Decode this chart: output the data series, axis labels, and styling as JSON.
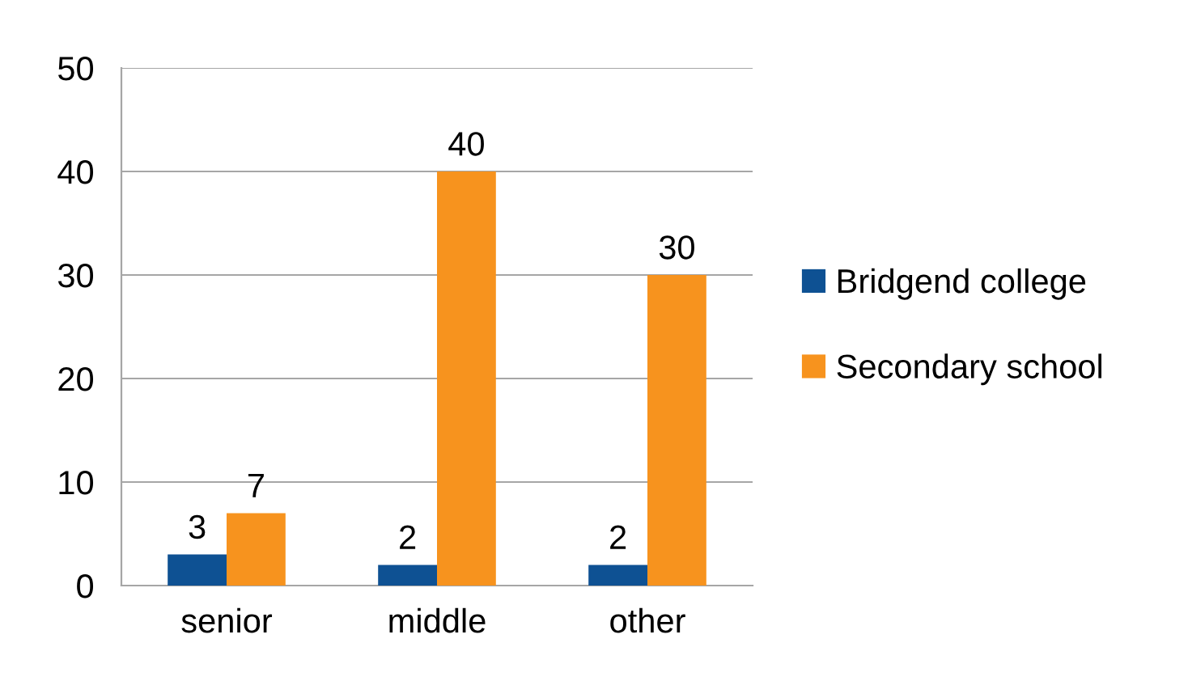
{
  "chart_data": {
    "type": "bar",
    "categories": [
      "senior",
      "middle",
      "other"
    ],
    "series": [
      {
        "name": "Bridgend college",
        "color": "#0e5193",
        "values": [
          3,
          2,
          2
        ],
        "value_labels": [
          "3",
          "2",
          "2"
        ]
      },
      {
        "name": "Secondary school",
        "color": "#f7931e",
        "values": [
          7,
          40,
          30
        ],
        "value_labels": [
          "7",
          "40",
          "30"
        ]
      }
    ],
    "ylim": [
      0,
      50
    ],
    "yticks": [
      0,
      10,
      20,
      30,
      40,
      50
    ],
    "grid": "y",
    "legend": "right"
  }
}
